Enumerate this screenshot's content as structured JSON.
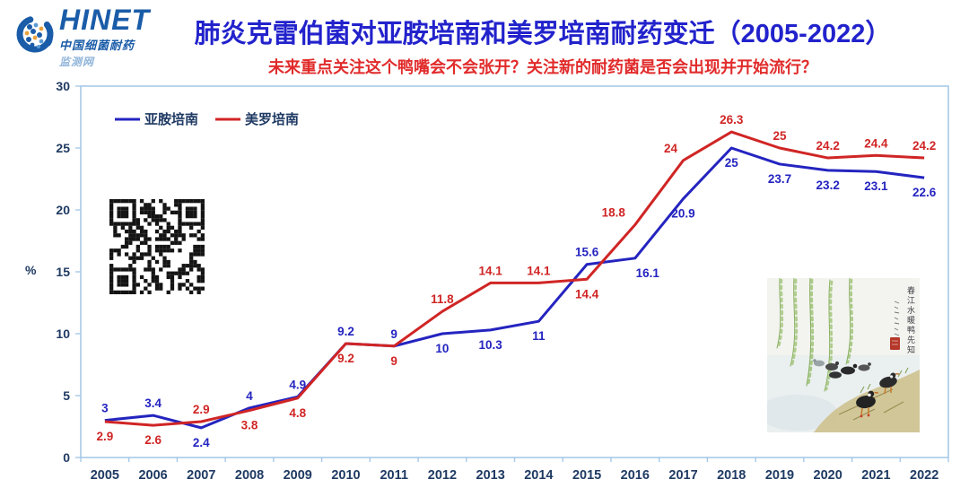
{
  "logo": {
    "brand": "HINET",
    "line1": "中国细菌耐药",
    "line2": "监测网"
  },
  "header": {
    "title": "肺炎克雷伯菌对亚胺培南和美罗培南耐药变迁（2005-2022）",
    "subtitle": "未来重点关注这个鸭嘴会不会张开？关注新的耐药菌是否会出现并开始流行？"
  },
  "chart_data": {
    "type": "line",
    "title": "",
    "xlabel": "",
    "ylabel": "%",
    "ylim": [
      0,
      30
    ],
    "yticks": [
      0,
      5,
      10,
      15,
      20,
      25,
      30
    ],
    "grid": false,
    "legend_position": "inside-top-left",
    "categories": [
      "2005",
      "2006",
      "2007",
      "2008",
      "2009",
      "2010",
      "2011",
      "2012",
      "2013",
      "2014",
      "2015",
      "2016",
      "2017",
      "2018",
      "2019",
      "2020",
      "2021",
      "2022"
    ],
    "series": [
      {
        "name": "亚胺培南",
        "color": "#2424c0",
        "values": [
          3,
          3.4,
          2.4,
          4,
          4.9,
          9.2,
          9,
          10,
          10.3,
          11,
          15.6,
          16.1,
          20.9,
          25,
          23.7,
          23.2,
          23.1,
          22.6
        ]
      },
      {
        "name": "美罗培南",
        "color": "#d02525",
        "values": [
          2.9,
          2.6,
          2.9,
          3.8,
          4.8,
          9.2,
          9,
          11.8,
          14.1,
          14.1,
          14.4,
          18.8,
          24,
          26.3,
          25,
          24.2,
          24.4,
          24.2
        ]
      }
    ]
  },
  "painting": {
    "inscription": "春江水暖鸭先知"
  },
  "colors": {
    "title": "#2222cc",
    "subtitle": "#e12b2b",
    "axis_text": "#1f3a63",
    "axis_line": "#a6c9e8",
    "logo_blue": "#1a5ca8",
    "logo_accent": "#e8a33d"
  }
}
